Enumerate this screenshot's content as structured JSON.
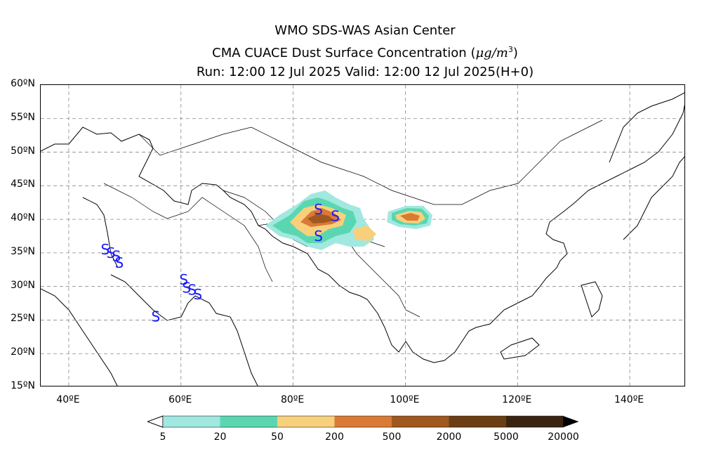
{
  "title": {
    "line1": "WMO SDS-WAS Asian Center",
    "line2_prefix": "CMA CUACE Dust Surface Concentration (",
    "unit_mu": "μ",
    "unit_g": "g/m",
    "unit_exp": "3",
    "line2_suffix": ")",
    "line3": "Run: 12:00 12 Jul 2025    Valid: 12:00 12 Jul 2025(H+0)"
  },
  "map": {
    "lon_range": [
      35,
      150
    ],
    "lat_range": [
      15,
      60
    ],
    "lat_labels": [
      "15ºN",
      "20ºN",
      "25ºN",
      "30ºN",
      "35ºN",
      "40ºN",
      "45ºN",
      "50ºN",
      "55ºN",
      "60ºN"
    ],
    "lon_labels": [
      "40ºE",
      "60ºE",
      "80ºE",
      "100ºE",
      "120ºE",
      "140ºE"
    ],
    "grid": true,
    "dust_storm_symbol": "S",
    "dust_storm_color": "#1a1aff"
  },
  "colorbar": {
    "labels": [
      "5",
      "20",
      "50",
      "200",
      "500",
      "2000",
      "5000",
      "20000"
    ],
    "colors": [
      "#a0e8e0",
      "#5ad7b0",
      "#f8d07c",
      "#d97a36",
      "#a0581e",
      "#6b3e14",
      "#3a2410"
    ],
    "under_color": "#ffffff",
    "over_color": "#000000"
  }
}
